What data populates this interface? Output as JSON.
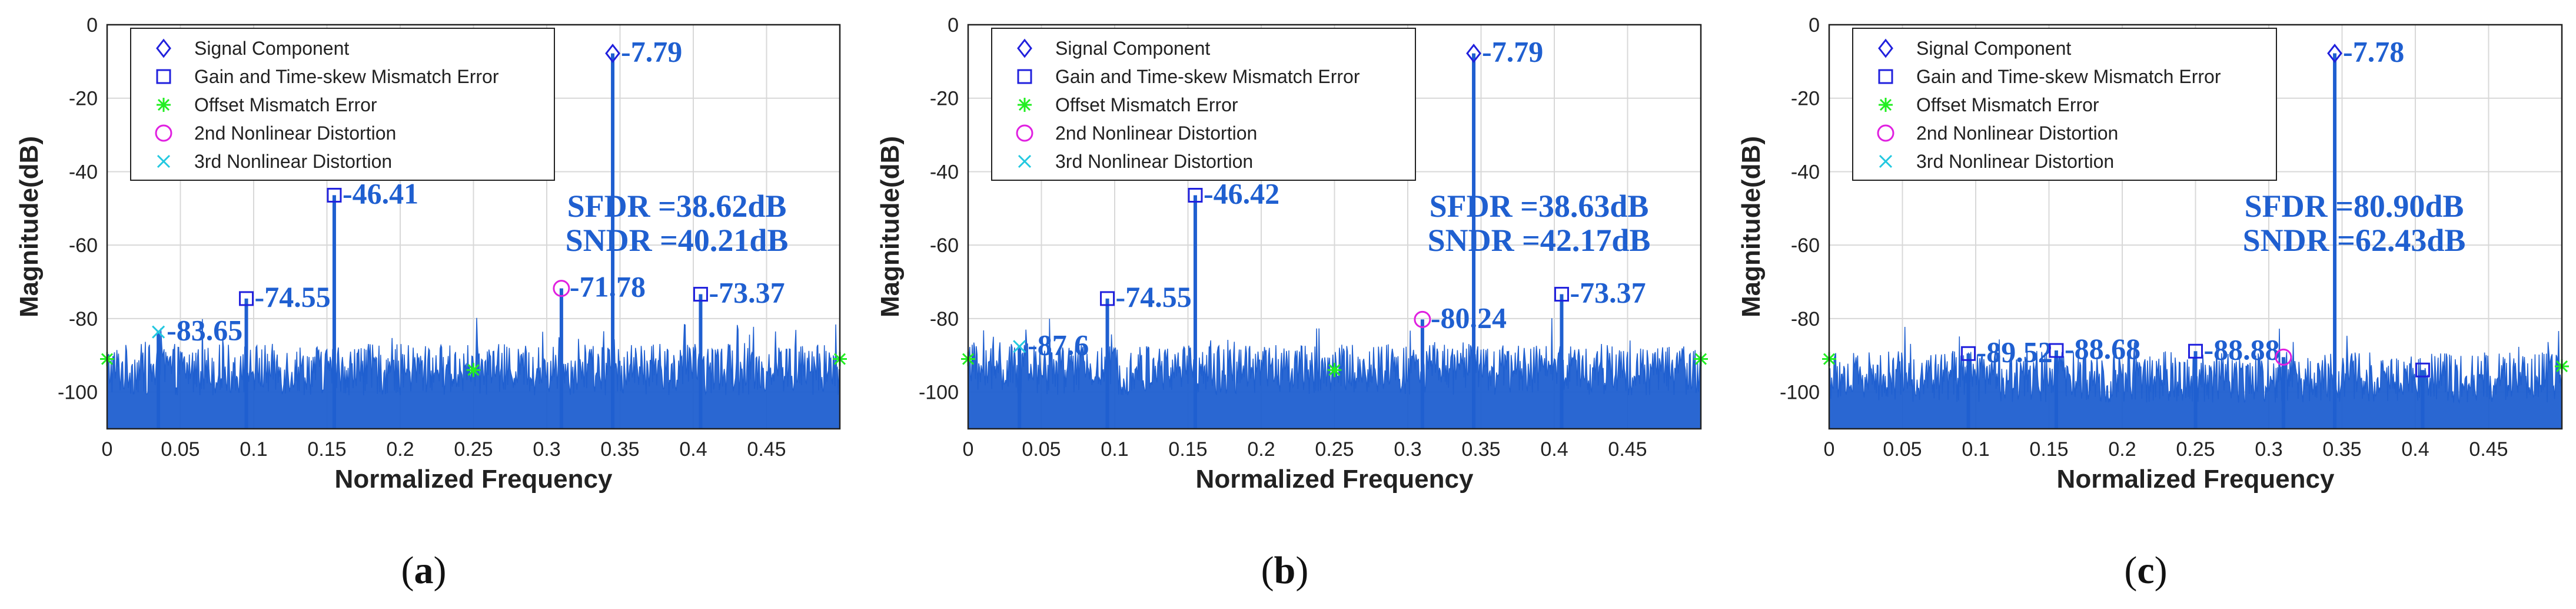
{
  "chart_data": [
    {
      "type": "line",
      "caption": "a",
      "xlabel": "Normalized Frequency",
      "ylabel": "Magnitude(dB)",
      "xlim": [
        0,
        0.5
      ],
      "ylim": [
        -110,
        0
      ],
      "xticks": [
        "0",
        "0.05",
        "0.1",
        "0.15",
        "0.2",
        "0.25",
        "0.3",
        "0.35",
        "0.4",
        "0.45"
      ],
      "yticks": [
        "0",
        "-20",
        "-40",
        "-60",
        "-80",
        "-100"
      ],
      "legend": [
        "Signal Component",
        "Gain and Time-skew Mismatch Error",
        "Offset Mismatch Error",
        "2nd Nonlinear Distortion",
        "3rd Nonlinear Distortion"
      ],
      "noise_floor_db": -96,
      "peaks": [
        {
          "x": 0.035,
          "y": -83.65,
          "label": "-83.65",
          "kind": "third"
        },
        {
          "x": 0.095,
          "y": -74.55,
          "label": "-74.55",
          "kind": "gain"
        },
        {
          "x": 0.155,
          "y": -46.41,
          "label": "-46.41",
          "kind": "gain"
        },
        {
          "x": 0.31,
          "y": -71.78,
          "label": "-71.78",
          "kind": "second"
        },
        {
          "x": 0.345,
          "y": -7.79,
          "label": "-7.79",
          "kind": "signal"
        },
        {
          "x": 0.405,
          "y": -73.37,
          "label": "-73.37",
          "kind": "gain"
        }
      ],
      "offset_markers": [
        {
          "x": 0,
          "y": -91
        },
        {
          "x": 0.25,
          "y": -94
        },
        {
          "x": 0.5,
          "y": -91
        }
      ],
      "sfdr_label": "SFDR =38.62dB",
      "sndr_label": "SNDR =40.21dB"
    },
    {
      "type": "line",
      "caption": "b",
      "xlabel": "Normalized Frequency",
      "ylabel": "Magnitude(dB)",
      "xlim": [
        0,
        0.5
      ],
      "ylim": [
        -110,
        0
      ],
      "xticks": [
        "0",
        "0.05",
        "0.1",
        "0.15",
        "0.2",
        "0.25",
        "0.3",
        "0.35",
        "0.4",
        "0.45"
      ],
      "yticks": [
        "0",
        "-20",
        "-40",
        "-60",
        "-80",
        "-100"
      ],
      "legend": [
        "Signal Component",
        "Gain and Time-skew Mismatch Error",
        "Offset Mismatch Error",
        "2nd Nonlinear Distortion",
        "3rd Nonlinear Distortion"
      ],
      "noise_floor_db": -96,
      "peaks": [
        {
          "x": 0.035,
          "y": -87.6,
          "label": "-87.6",
          "kind": "third"
        },
        {
          "x": 0.095,
          "y": -74.55,
          "label": "-74.55",
          "kind": "gain"
        },
        {
          "x": 0.155,
          "y": -46.42,
          "label": "-46.42",
          "kind": "gain"
        },
        {
          "x": 0.31,
          "y": -80.24,
          "label": "-80.24",
          "kind": "second"
        },
        {
          "x": 0.345,
          "y": -7.79,
          "label": "-7.79",
          "kind": "signal"
        },
        {
          "x": 0.405,
          "y": -73.37,
          "label": "-73.37",
          "kind": "gain"
        }
      ],
      "offset_markers": [
        {
          "x": 0,
          "y": -91
        },
        {
          "x": 0.25,
          "y": -94
        },
        {
          "x": 0.5,
          "y": -91
        }
      ],
      "sfdr_label": "SFDR =38.63dB",
      "sndr_label": "SNDR =42.17dB"
    },
    {
      "type": "line",
      "caption": "c",
      "xlabel": "Normalized Frequency",
      "ylabel": "Magnitude(dB)",
      "xlim": [
        0,
        0.5
      ],
      "ylim": [
        -110,
        0
      ],
      "xticks": [
        "0",
        "0.05",
        "0.1",
        "0.15",
        "0.2",
        "0.25",
        "0.3",
        "0.35",
        "0.4",
        "0.45"
      ],
      "yticks": [
        "0",
        "-20",
        "-40",
        "-60",
        "-80",
        "-100"
      ],
      "legend": [
        "Signal Component",
        "Gain and Time-skew Mismatch Error",
        "Offset Mismatch Error",
        "2nd Nonlinear Distortion",
        "3rd Nonlinear Distortion"
      ],
      "noise_floor_db": -98,
      "peaks": [
        {
          "x": 0.095,
          "y": -89.52,
          "label": "-89.52",
          "kind": "gain"
        },
        {
          "x": 0.155,
          "y": -88.68,
          "label": "-88.68",
          "kind": "gain"
        },
        {
          "x": 0.25,
          "y": -88.88,
          "label": "-88.88",
          "kind": "gain"
        },
        {
          "x": 0.31,
          "y": -90.5,
          "label": "",
          "kind": "second"
        },
        {
          "x": 0.345,
          "y": -7.78,
          "label": "-7.78",
          "kind": "signal"
        },
        {
          "x": 0.405,
          "y": -94,
          "label": "",
          "kind": "gain"
        }
      ],
      "offset_markers": [
        {
          "x": 0,
          "y": -91
        },
        {
          "x": 0.5,
          "y": -93
        }
      ],
      "sfdr_label": "SFDR =80.90dB",
      "sndr_label": "SNDR =62.43dB"
    }
  ]
}
